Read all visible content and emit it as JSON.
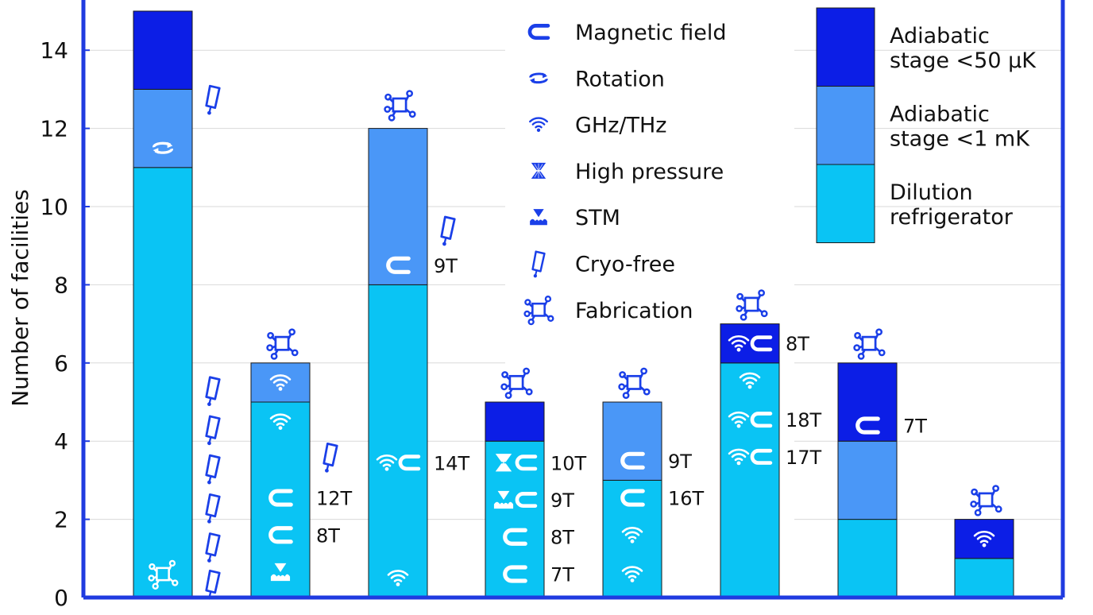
{
  "colors": {
    "dilution": "#0ac4f4",
    "mk": "#4a97f7",
    "uk": "#0c1ee6",
    "frame": "#1f3be0",
    "icon": "#1a3fe8",
    "iconLight": "#ffffff",
    "grid": "#d9d9d9"
  },
  "chart_data": {
    "type": "bar",
    "stacked": true,
    "ylabel": "Number of facilities",
    "ylim": [
      0,
      15
    ],
    "yticks": [
      0,
      2,
      4,
      6,
      8,
      10,
      12,
      14
    ],
    "grid": true,
    "legend_position": "top-right",
    "series": [
      {
        "name": "Dilution refrigerator",
        "key": "dilution",
        "label_lines": [
          "Dilution",
          "refrigerator"
        ],
        "values": [
          11,
          5,
          8,
          4,
          3,
          6,
          2,
          1
        ]
      },
      {
        "name": "Adiabatic stage <1 mK",
        "key": "mk",
        "label_lines": [
          "Adiabatic",
          "stage <1 mK"
        ],
        "values": [
          2,
          1,
          4,
          0,
          2,
          0,
          2,
          0
        ]
      },
      {
        "name": "Adiabatic stage <50 μK",
        "key": "uk",
        "label_lines": [
          "Adiabatic",
          "stage <50 μK"
        ],
        "values": [
          2,
          0,
          0,
          1,
          0,
          1,
          2,
          1
        ]
      }
    ],
    "feature_legend": [
      {
        "icon": "magnet-icon",
        "label": "Magnetic field"
      },
      {
        "icon": "rotation-icon",
        "label": "Rotation"
      },
      {
        "icon": "wifi-icon",
        "label": "GHz/THz"
      },
      {
        "icon": "anvil-icon",
        "label": "High pressure"
      },
      {
        "icon": "stm-icon",
        "label": "STM"
      },
      {
        "icon": "cryo-icon",
        "label": "Cryo-free"
      },
      {
        "icon": "fab-icon",
        "label": "Fabrication"
      }
    ],
    "annotations": [
      {
        "bar": 0,
        "icon": "rotation-icon",
        "y": 11.5,
        "color": "light"
      },
      {
        "bar": 0,
        "icon": "fab-icon",
        "y": 0.6,
        "color": "light"
      },
      {
        "bar": 0,
        "icon": "cryo-icon",
        "y": 12.75,
        "side": "right"
      },
      {
        "bar": 0,
        "icon": "cryo-icon",
        "y": 5.3,
        "side": "right"
      },
      {
        "bar": 0,
        "icon": "cryo-icon",
        "y": 4.3,
        "side": "right"
      },
      {
        "bar": 0,
        "icon": "cryo-icon",
        "y": 3.3,
        "side": "right"
      },
      {
        "bar": 0,
        "icon": "cryo-icon",
        "y": 2.3,
        "side": "right"
      },
      {
        "bar": 0,
        "icon": "cryo-icon",
        "y": 1.3,
        "side": "right"
      },
      {
        "bar": 0,
        "icon": "cryo-icon",
        "y": 0.35,
        "side": "right"
      },
      {
        "bar": 1,
        "icon": "fab-icon",
        "y": 6.5,
        "side": "top"
      },
      {
        "bar": 1,
        "icon": "wifi-icon",
        "y": 5.5,
        "color": "light"
      },
      {
        "bar": 1,
        "icon": "wifi-icon",
        "y": 4.5,
        "color": "light"
      },
      {
        "bar": 1,
        "icon": "magnet-icon",
        "y": 2.55,
        "color": "light",
        "label": "12T"
      },
      {
        "bar": 1,
        "icon": "magnet-icon",
        "y": 1.6,
        "color": "light",
        "label": "8T"
      },
      {
        "bar": 1,
        "icon": "stm-icon",
        "y": 0.65,
        "color": "light"
      },
      {
        "bar": 1,
        "icon": "cryo-icon",
        "y": 3.6,
        "side": "right"
      },
      {
        "bar": 2,
        "icon": "fab-icon",
        "y": 12.6,
        "side": "top"
      },
      {
        "bar": 2,
        "icon": "cryo-icon",
        "y": 9.4,
        "side": "right"
      },
      {
        "bar": 2,
        "icon": "magnet-icon",
        "y": 8.5,
        "color": "light",
        "label": "9T"
      },
      {
        "bar": 2,
        "icon": "wifi-icon",
        "y": 3.45,
        "color": "light",
        "label": "14T"
      },
      {
        "bar": 2,
        "icon": "wifi-icon",
        "y": 0.5,
        "color": "light"
      },
      {
        "bar": 3,
        "icon": "fab-icon",
        "y": 5.5,
        "side": "top"
      },
      {
        "bar": 3,
        "icon": "anvil-icon",
        "y": 3.45,
        "color": "light",
        "label": "10T"
      },
      {
        "bar": 3,
        "icon": "stm-icon",
        "y": 2.5,
        "color": "light",
        "label": "9T"
      },
      {
        "bar": 3,
        "icon": "magnet-icon",
        "y": 1.55,
        "color": "light",
        "label": "8T"
      },
      {
        "bar": 3,
        "icon": "magnet-icon",
        "y": 0.6,
        "color": "light",
        "label": "7T"
      },
      {
        "bar": 4,
        "icon": "fab-icon",
        "y": 5.5,
        "side": "top"
      },
      {
        "bar": 4,
        "icon": "magnet-icon",
        "y": 3.5,
        "color": "light",
        "label": "9T"
      },
      {
        "bar": 4,
        "icon": "magnet-icon",
        "y": 2.55,
        "color": "light",
        "label": "16T"
      },
      {
        "bar": 4,
        "icon": "wifi-icon",
        "y": 1.6,
        "color": "light"
      },
      {
        "bar": 4,
        "icon": "wifi-icon",
        "y": 0.6,
        "color": "light"
      },
      {
        "bar": 5,
        "icon": "fab-icon",
        "y": 7.5,
        "side": "top"
      },
      {
        "bar": 5,
        "icon": "wifi-icon",
        "y": 6.5,
        "color": "light",
        "label": "8T"
      },
      {
        "bar": 5,
        "icon": "wifi-icon",
        "y": 5.55,
        "color": "light"
      },
      {
        "bar": 5,
        "icon": "wifi-icon",
        "y": 4.55,
        "color": "light",
        "label": "18T"
      },
      {
        "bar": 5,
        "icon": "wifi-icon",
        "y": 3.6,
        "color": "light",
        "label": "17T"
      },
      {
        "bar": 6,
        "icon": "fab-icon",
        "y": 6.5,
        "side": "top"
      },
      {
        "bar": 6,
        "icon": "magnet-icon",
        "y": 4.4,
        "color": "light",
        "label": "7T"
      },
      {
        "bar": 7,
        "icon": "fab-icon",
        "y": 2.5,
        "side": "top"
      },
      {
        "bar": 7,
        "icon": "wifi-icon",
        "y": 1.5,
        "color": "light"
      }
    ],
    "magnet_pairs": [
      {
        "bar": 2,
        "y": 3.45
      },
      {
        "bar": 3,
        "y": 3.45
      },
      {
        "bar": 3,
        "y": 2.5
      },
      {
        "bar": 5,
        "y": 6.5
      },
      {
        "bar": 5,
        "y": 4.55
      },
      {
        "bar": 5,
        "y": 3.6
      }
    ]
  }
}
